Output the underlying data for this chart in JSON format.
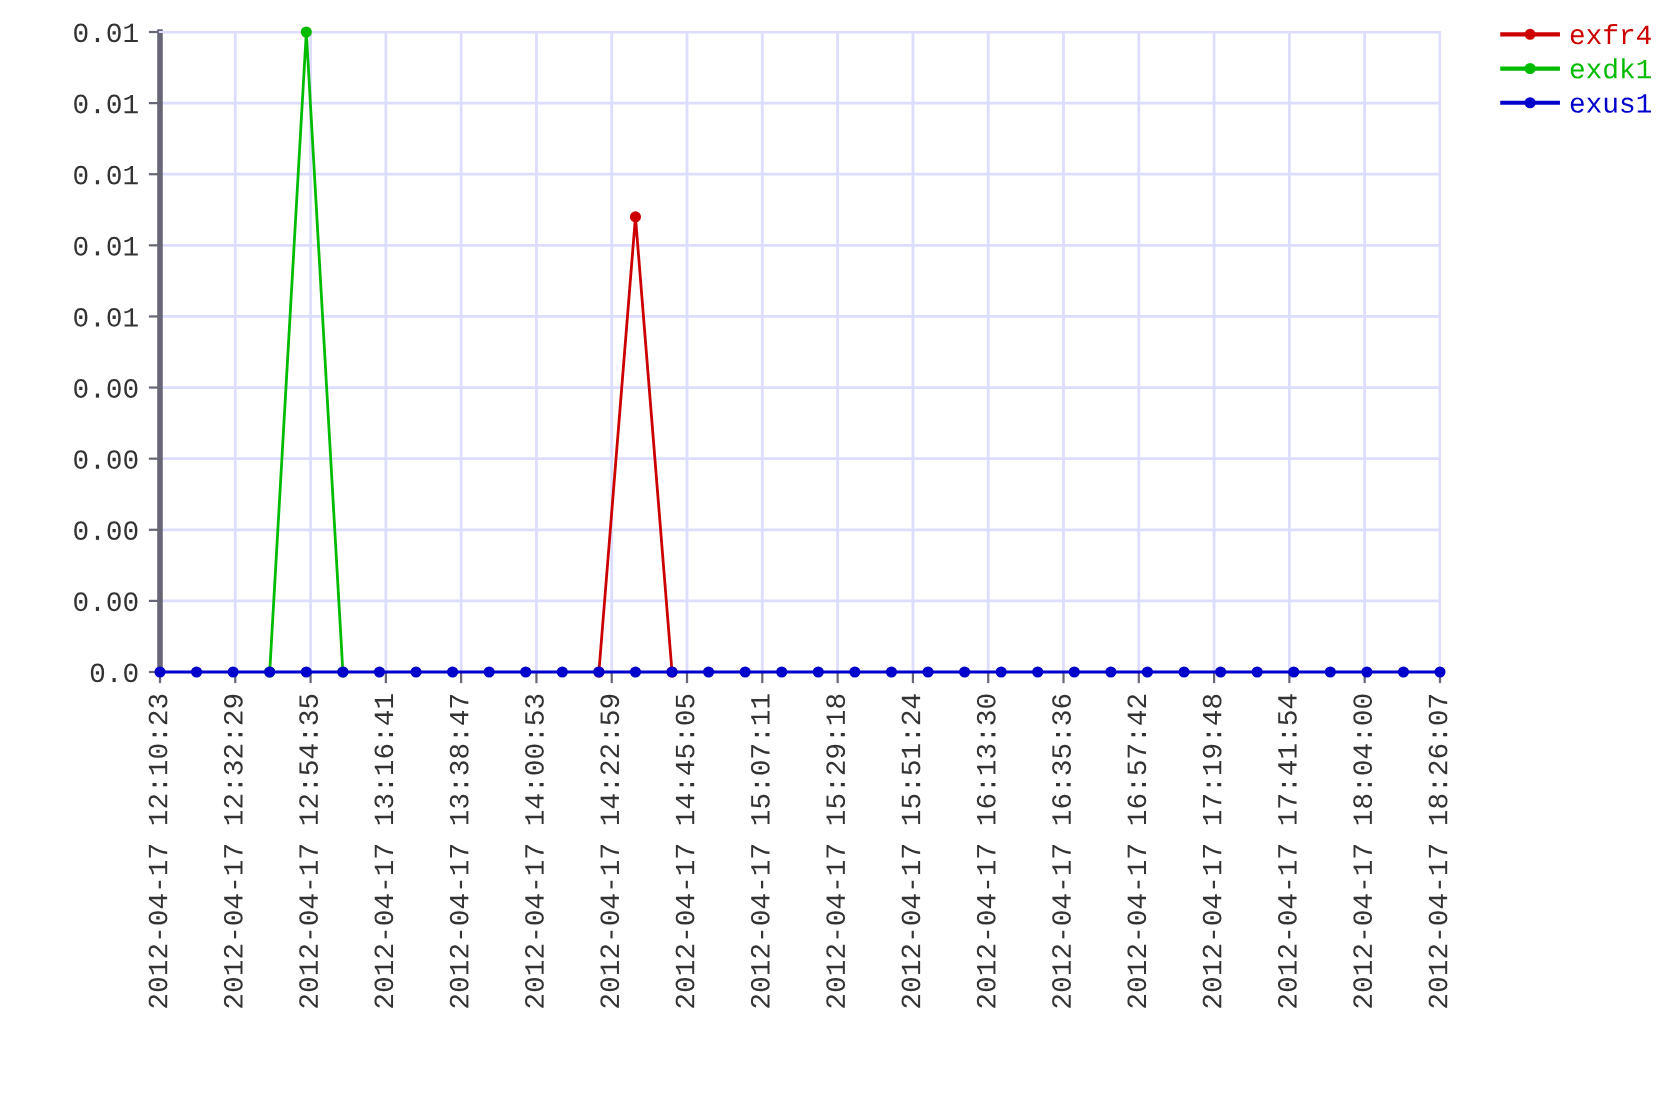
{
  "chart_data": {
    "type": "line",
    "x": [
      "2012-04-17T12:10:23",
      "2012-04-17T12:21:07",
      "2012-04-17T12:31:51",
      "2012-04-17T12:42:35",
      "2012-04-17T12:53:20",
      "2012-04-17T13:04:04",
      "2012-04-17T13:14:48",
      "2012-04-17T13:25:32",
      "2012-04-17T13:36:16",
      "2012-04-17T13:47:00",
      "2012-04-17T13:57:44",
      "2012-04-17T14:08:29",
      "2012-04-17T14:19:13",
      "2012-04-17T14:29:57",
      "2012-04-17T14:40:41",
      "2012-04-17T14:51:25",
      "2012-04-17T15:02:09",
      "2012-04-17T15:12:53",
      "2012-04-17T15:23:37",
      "2012-04-17T15:34:21",
      "2012-04-17T15:45:05",
      "2012-04-17T15:55:50",
      "2012-04-17T16:06:34",
      "2012-04-17T16:17:18",
      "2012-04-17T16:28:02",
      "2012-04-17T16:38:46",
      "2012-04-17T16:49:30",
      "2012-04-17T17:00:14",
      "2012-04-17T17:10:59",
      "2012-04-17T17:21:43",
      "2012-04-17T17:32:27",
      "2012-04-17T17:43:11",
      "2012-04-17T17:53:55",
      "2012-04-17T18:04:39",
      "2012-04-17T18:15:23",
      "2012-04-17T18:26:07"
    ],
    "series": [
      {
        "name": "exfr4",
        "color": "#cc0000",
        "values": [
          null,
          null,
          null,
          null,
          null,
          null,
          null,
          null,
          null,
          null,
          null,
          null,
          0,
          0.0064,
          0,
          null,
          null,
          null,
          null,
          null,
          null,
          null,
          null,
          null,
          null,
          null,
          null,
          null,
          null,
          null,
          null,
          null,
          null,
          null,
          null,
          null
        ]
      },
      {
        "name": "exdk1",
        "color": "#00bb00",
        "values": [
          null,
          null,
          null,
          0,
          0.009,
          0,
          null,
          null,
          null,
          null,
          null,
          null,
          null,
          null,
          null,
          null,
          null,
          null,
          null,
          null,
          null,
          null,
          null,
          null,
          null,
          null,
          null,
          null,
          null,
          null,
          null,
          null,
          null,
          null,
          null,
          null
        ]
      },
      {
        "name": "exus1",
        "color": "#0000cc",
        "values": [
          0,
          0,
          0,
          0,
          0,
          0,
          0,
          0,
          0,
          0,
          0,
          0,
          0,
          0,
          0,
          0,
          0,
          0,
          0,
          0,
          0,
          0,
          0,
          0,
          0,
          0,
          0,
          0,
          0,
          0,
          0,
          0,
          0,
          0,
          0,
          0
        ]
      }
    ],
    "xlim": [
      "2012-04-17T12:10:23",
      "2012-04-17T18:26:07"
    ],
    "xticks": [
      {
        "value": "2012-04-17T12:10:23",
        "label": "2012-04-17 12:10:23"
      },
      {
        "value": "2012-04-17T12:32:29",
        "label": "2012-04-17 12:32:29"
      },
      {
        "value": "2012-04-17T12:54:35",
        "label": "2012-04-17 12:54:35"
      },
      {
        "value": "2012-04-17T13:16:41",
        "label": "2012-04-17 13:16:41"
      },
      {
        "value": "2012-04-17T13:38:47",
        "label": "2012-04-17 13:38:47"
      },
      {
        "value": "2012-04-17T14:00:53",
        "label": "2012-04-17 14:00:53"
      },
      {
        "value": "2012-04-17T14:22:59",
        "label": "2012-04-17 14:22:59"
      },
      {
        "value": "2012-04-17T14:45:05",
        "label": "2012-04-17 14:45:05"
      },
      {
        "value": "2012-04-17T15:07:11",
        "label": "2012-04-17 15:07:11"
      },
      {
        "value": "2012-04-17T15:29:18",
        "label": "2012-04-17 15:29:18"
      },
      {
        "value": "2012-04-17T15:51:24",
        "label": "2012-04-17 15:51:24"
      },
      {
        "value": "2012-04-17T16:13:30",
        "label": "2012-04-17 16:13:30"
      },
      {
        "value": "2012-04-17T16:35:36",
        "label": "2012-04-17 16:35:36"
      },
      {
        "value": "2012-04-17T16:57:42",
        "label": "2012-04-17 16:57:42"
      },
      {
        "value": "2012-04-17T17:19:48",
        "label": "2012-04-17 17:19:48"
      },
      {
        "value": "2012-04-17T17:41:54",
        "label": "2012-04-17 17:41:54"
      },
      {
        "value": "2012-04-17T18:04:00",
        "label": "2012-04-17 18:04:00"
      },
      {
        "value": "2012-04-17T18:26:07",
        "label": "2012-04-17 18:26:07"
      }
    ],
    "ylim": [
      0,
      0.009
    ],
    "yticks": [
      {
        "value": 0,
        "label": "0.0"
      },
      {
        "value": 0.001,
        "label": "0.00"
      },
      {
        "value": 0.002,
        "label": "0.00"
      },
      {
        "value": 0.003,
        "label": "0.00"
      },
      {
        "value": 0.004,
        "label": "0.00"
      },
      {
        "value": 0.005,
        "label": "0.01"
      },
      {
        "value": 0.006,
        "label": "0.01"
      },
      {
        "value": 0.007,
        "label": "0.01"
      },
      {
        "value": 0.008,
        "label": "0.01"
      },
      {
        "value": 0.009,
        "label": "0.01"
      }
    ],
    "grid": true,
    "legend": "top right",
    "marker": "circle",
    "line_style": "solid"
  }
}
